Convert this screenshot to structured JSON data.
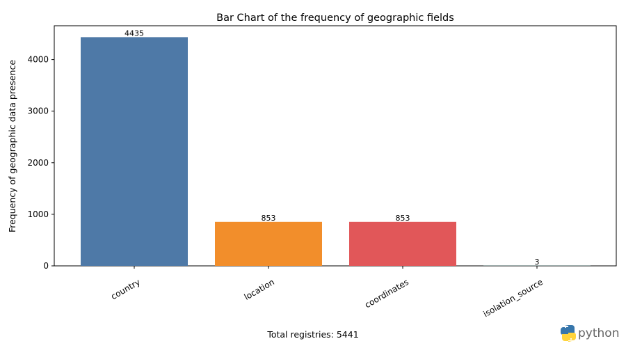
{
  "chart_data": {
    "type": "bar",
    "title": "Bar Chart of the frequency of geographic fields",
    "xlabel": "Total registries: 5441",
    "ylabel": "Frequency of geographic data presence",
    "categories": [
      "country",
      "location",
      "coordinates",
      "isolation_source"
    ],
    "values": [
      4435,
      853,
      853,
      3
    ],
    "value_labels": [
      "4435",
      "853",
      "853",
      "3"
    ],
    "colors": [
      "#4e79a7",
      "#f28e2b",
      "#e15759",
      "#76b7b2"
    ],
    "ylim": [
      0,
      4656
    ],
    "yticks": [
      0,
      1000,
      2000,
      3000,
      4000
    ],
    "ytick_labels": [
      "0",
      "1000",
      "2000",
      "3000",
      "4000"
    ],
    "grid": false,
    "legend": "none"
  },
  "logo": {
    "text": "python",
    "icon": "python-logo-icon",
    "colors": {
      "blue": "#3776ab",
      "yellow": "#ffd43b",
      "text": "#646464"
    }
  }
}
